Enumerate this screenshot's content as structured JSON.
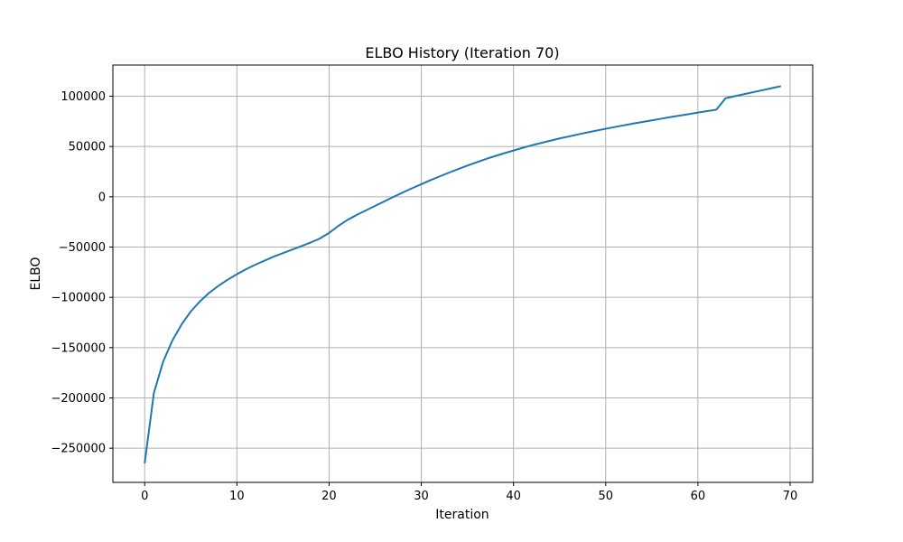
{
  "chart_data": {
    "type": "line",
    "title": "ELBO History (Iteration 70)",
    "xlabel": "Iteration",
    "ylabel": "ELBO",
    "xlim": [
      -3.45,
      72.45
    ],
    "ylim": [
      -284000,
      131000
    ],
    "xticks": [
      0,
      10,
      20,
      30,
      40,
      50,
      60,
      70
    ],
    "yticks": [
      -250000,
      -200000,
      -150000,
      -100000,
      -50000,
      0,
      50000,
      100000
    ],
    "grid": true,
    "line_color": "#1f77b4",
    "series": [
      {
        "x": [
          0,
          1,
          2,
          3,
          4,
          5,
          6,
          7,
          8,
          9,
          10,
          11,
          12,
          13,
          14,
          15,
          16,
          17,
          18,
          19,
          20,
          21,
          22,
          23,
          24,
          25,
          26,
          27,
          28,
          29,
          30,
          31,
          32,
          33,
          34,
          35,
          36,
          37,
          38,
          39,
          40,
          41,
          42,
          43,
          44,
          45,
          46,
          47,
          48,
          49,
          50,
          51,
          52,
          53,
          54,
          55,
          56,
          57,
          58,
          59,
          60,
          61,
          62,
          63,
          64,
          65,
          66,
          67,
          68,
          69
        ],
        "y": [
          -265000,
          -195000,
          -164000,
          -143000,
          -127000,
          -114000,
          -104000,
          -95500,
          -88500,
          -82500,
          -77000,
          -72000,
          -67500,
          -63500,
          -59500,
          -56000,
          -52500,
          -49000,
          -45500,
          -41500,
          -36000,
          -29000,
          -23000,
          -18000,
          -13500,
          -9000,
          -4500,
          0,
          4300,
          8500,
          12500,
          16500,
          20300,
          24000,
          27500,
          31000,
          34300,
          37500,
          40500,
          43300,
          46000,
          48700,
          51200,
          53500,
          55800,
          58000,
          60000,
          62000,
          64000,
          65800,
          67600,
          69400,
          71100,
          72800,
          74400,
          76000,
          77600,
          79200,
          80700,
          82200,
          83700,
          85200,
          86600,
          98000,
          100000,
          102000,
          104000,
          106000,
          108000,
          110000
        ]
      }
    ]
  }
}
